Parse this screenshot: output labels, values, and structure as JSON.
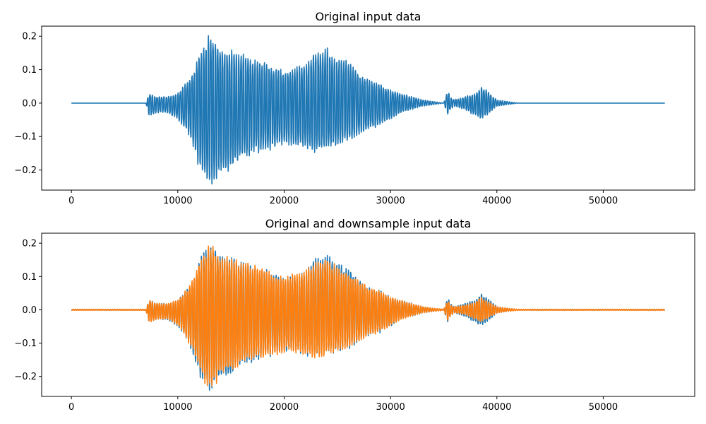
{
  "figure": {
    "background": "#ffffff"
  },
  "chart_data": [
    {
      "type": "line",
      "title": "Original input data",
      "xlabel": "",
      "ylabel": "",
      "xlim": [
        -2800,
        58600
      ],
      "ylim": [
        -0.26,
        0.23
      ],
      "xticks": [
        0,
        10000,
        20000,
        30000,
        40000,
        50000
      ],
      "xtick_labels": [
        "0",
        "10000",
        "20000",
        "30000",
        "40000",
        "50000"
      ],
      "yticks": [
        -0.2,
        -0.1,
        0.0,
        0.1,
        0.2
      ],
      "ytick_labels": [
        "−0.2",
        "−0.1",
        "0.0",
        "0.1",
        "0.2"
      ],
      "grid": false,
      "legend": "none",
      "series": [
        {
          "color": "#1f77b4",
          "x": [
            0,
            7000,
            7300,
            8000,
            9000,
            10000,
            10500,
            11000,
            11500,
            12000,
            12500,
            13000,
            13500,
            14000,
            15000,
            16000,
            17000,
            18000,
            19000,
            20000,
            21000,
            22000,
            23000,
            24000,
            25000,
            26000,
            27000,
            28000,
            29000,
            30000,
            31000,
            32000,
            33000,
            34000,
            35000,
            35400,
            35600,
            36000,
            37000,
            38000,
            38500,
            39000,
            40000,
            41000,
            42000,
            43000,
            55800
          ],
          "max": [
            0,
            0,
            0.03,
            0.02,
            0.02,
            0.03,
            0.05,
            0.07,
            0.1,
            0.15,
            0.18,
            0.21,
            0.2,
            0.17,
            0.16,
            0.15,
            0.14,
            0.13,
            0.11,
            0.1,
            0.11,
            0.12,
            0.16,
            0.17,
            0.14,
            0.13,
            0.09,
            0.07,
            0.06,
            0.04,
            0.03,
            0.02,
            0.01,
            0.005,
            0,
            0.04,
            0.02,
            0.01,
            0.02,
            0.03,
            0.05,
            0.04,
            0.01,
            0.005,
            0,
            0,
            0
          ],
          "min": [
            0,
            0,
            -0.04,
            -0.03,
            -0.03,
            -0.05,
            -0.07,
            -0.1,
            -0.15,
            -0.2,
            -0.24,
            -0.25,
            -0.24,
            -0.22,
            -0.2,
            -0.17,
            -0.16,
            -0.15,
            -0.14,
            -0.13,
            -0.13,
            -0.14,
            -0.15,
            -0.14,
            -0.13,
            -0.12,
            -0.1,
            -0.08,
            -0.07,
            -0.05,
            -0.03,
            -0.02,
            -0.01,
            -0.005,
            0,
            -0.04,
            -0.02,
            -0.01,
            -0.02,
            -0.04,
            -0.05,
            -0.04,
            -0.01,
            -0.005,
            0,
            0,
            0
          ]
        }
      ]
    },
    {
      "type": "line",
      "title": "Original and downsample input data",
      "xlabel": "",
      "ylabel": "",
      "xlim": [
        -2800,
        58600
      ],
      "ylim": [
        -0.26,
        0.23
      ],
      "xticks": [
        0,
        10000,
        20000,
        30000,
        40000,
        50000
      ],
      "xtick_labels": [
        "0",
        "10000",
        "20000",
        "30000",
        "40000",
        "50000"
      ],
      "yticks": [
        -0.2,
        -0.1,
        0.0,
        0.1,
        0.2
      ],
      "ytick_labels": [
        "−0.2",
        "−0.1",
        "0.0",
        "0.1",
        "0.2"
      ],
      "grid": false,
      "legend": "none",
      "series": [
        {
          "color": "#1f77b4",
          "x": [
            0,
            7000,
            7300,
            8000,
            9000,
            10000,
            10500,
            11000,
            11500,
            12000,
            12500,
            13000,
            13500,
            14000,
            15000,
            16000,
            17000,
            18000,
            19000,
            20000,
            21000,
            22000,
            23000,
            24000,
            25000,
            26000,
            27000,
            28000,
            29000,
            30000,
            31000,
            32000,
            33000,
            34000,
            35000,
            35400,
            35600,
            36000,
            37000,
            38000,
            38500,
            39000,
            40000,
            41000,
            42000,
            43000,
            55800
          ],
          "max": [
            0,
            0,
            0.03,
            0.02,
            0.02,
            0.03,
            0.05,
            0.07,
            0.1,
            0.15,
            0.18,
            0.21,
            0.2,
            0.17,
            0.16,
            0.15,
            0.14,
            0.13,
            0.11,
            0.1,
            0.11,
            0.12,
            0.16,
            0.17,
            0.14,
            0.13,
            0.09,
            0.07,
            0.06,
            0.04,
            0.03,
            0.02,
            0.01,
            0.005,
            0,
            0.04,
            0.02,
            0.01,
            0.02,
            0.03,
            0.05,
            0.04,
            0.01,
            0.005,
            0,
            0,
            0
          ],
          "min": [
            0,
            0,
            -0.04,
            -0.03,
            -0.03,
            -0.05,
            -0.07,
            -0.1,
            -0.15,
            -0.2,
            -0.24,
            -0.25,
            -0.24,
            -0.22,
            -0.2,
            -0.17,
            -0.16,
            -0.15,
            -0.14,
            -0.13,
            -0.13,
            -0.14,
            -0.15,
            -0.14,
            -0.13,
            -0.12,
            -0.1,
            -0.08,
            -0.07,
            -0.05,
            -0.03,
            -0.02,
            -0.01,
            -0.005,
            0,
            -0.04,
            -0.02,
            -0.01,
            -0.02,
            -0.04,
            -0.05,
            -0.04,
            -0.01,
            -0.005,
            0,
            0,
            0
          ]
        },
        {
          "color": "#ff7f0e",
          "x": [
            0,
            7000,
            7300,
            8000,
            9000,
            10000,
            10500,
            11000,
            11500,
            12000,
            12500,
            13000,
            13500,
            14000,
            15000,
            16000,
            17000,
            18000,
            19000,
            20000,
            21000,
            22000,
            23000,
            24000,
            25000,
            26000,
            27000,
            28000,
            29000,
            30000,
            31000,
            32000,
            33000,
            34000,
            35000,
            35400,
            35600,
            36000,
            37000,
            38000,
            38500,
            39000,
            40000,
            41000,
            42000,
            43000,
            55800
          ],
          "max": [
            0.002,
            0.002,
            0.03,
            0.02,
            0.02,
            0.03,
            0.05,
            0.07,
            0.1,
            0.14,
            0.17,
            0.2,
            0.19,
            0.17,
            0.16,
            0.15,
            0.14,
            0.13,
            0.11,
            0.1,
            0.11,
            0.12,
            0.15,
            0.16,
            0.13,
            0.12,
            0.09,
            0.07,
            0.06,
            0.04,
            0.03,
            0.02,
            0.01,
            0.005,
            0.002,
            0.03,
            0.015,
            0.01,
            0.015,
            0.025,
            0.04,
            0.03,
            0.01,
            0.005,
            0.002,
            0.002,
            0.002
          ],
          "min": [
            -0.002,
            -0.002,
            -0.04,
            -0.03,
            -0.03,
            -0.05,
            -0.07,
            -0.1,
            -0.14,
            -0.19,
            -0.23,
            -0.24,
            -0.23,
            -0.21,
            -0.19,
            -0.17,
            -0.16,
            -0.15,
            -0.14,
            -0.13,
            -0.13,
            -0.14,
            -0.15,
            -0.14,
            -0.13,
            -0.12,
            -0.1,
            -0.08,
            -0.07,
            -0.05,
            -0.03,
            -0.02,
            -0.01,
            -0.005,
            -0.002,
            -0.035,
            -0.02,
            -0.01,
            -0.015,
            -0.03,
            -0.04,
            -0.03,
            -0.01,
            -0.005,
            -0.002,
            -0.002,
            -0.002
          ]
        }
      ]
    }
  ]
}
